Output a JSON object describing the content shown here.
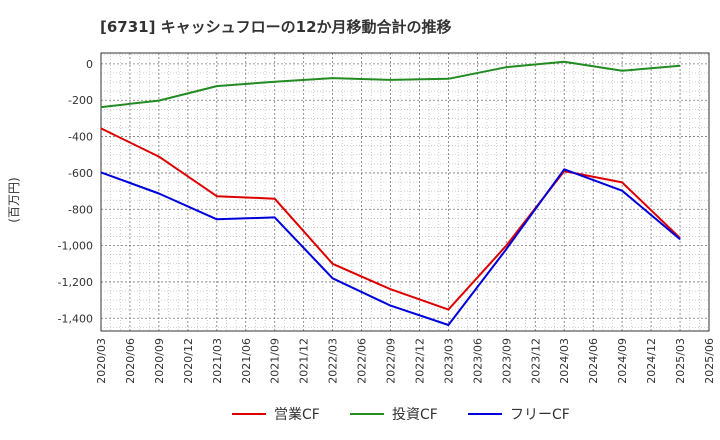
{
  "chart_data": {
    "type": "line",
    "title": "[6731]  キャッシュフローの12か月移動合計の推移",
    "ylabel": "(百万円)",
    "xlabel": "",
    "ylim": [
      -1470,
      60
    ],
    "yticks": [
      0,
      -200,
      -400,
      -600,
      -800,
      -1000,
      -1200,
      -1400
    ],
    "ytick_labels": [
      "0",
      "-200",
      "-400",
      "-600",
      "-800",
      "-1,000",
      "-1,200",
      "-1,400"
    ],
    "x_tick_labels": [
      "2020/03",
      "2020/06",
      "2020/09",
      "2020/12",
      "2021/03",
      "2021/06",
      "2021/09",
      "2021/12",
      "2022/03",
      "2022/06",
      "2022/09",
      "2022/12",
      "2023/03",
      "2023/06",
      "2023/09",
      "2023/12",
      "2024/03",
      "2024/06",
      "2024/09",
      "2024/12",
      "2025/03",
      "2025/06"
    ],
    "grid": true,
    "legend_position": "bottom",
    "series": [
      {
        "name": "営業CF",
        "color": "#dd0000",
        "x_indices": [
          0,
          2,
          4,
          6,
          8,
          10,
          12,
          14,
          16,
          18,
          20
        ],
        "values": [
          -355,
          -510,
          -728,
          -742,
          -1100,
          -1240,
          -1352,
          -1000,
          -590,
          -652,
          -958
        ]
      },
      {
        "name": "投資CF",
        "color": "#228b22",
        "x_indices": [
          0,
          2,
          4,
          6,
          8,
          10,
          12,
          14,
          16,
          18,
          20
        ],
        "values": [
          -238,
          -202,
          -122,
          -98,
          -78,
          -88,
          -82,
          -18,
          12,
          -38,
          -10
        ]
      },
      {
        "name": "フリーCF",
        "color": "#0000dd",
        "x_indices": [
          0,
          2,
          4,
          6,
          8,
          10,
          12,
          14,
          16,
          18,
          20
        ],
        "values": [
          -597,
          -713,
          -855,
          -845,
          -1180,
          -1330,
          -1437,
          -1020,
          -580,
          -698,
          -965
        ]
      }
    ]
  }
}
